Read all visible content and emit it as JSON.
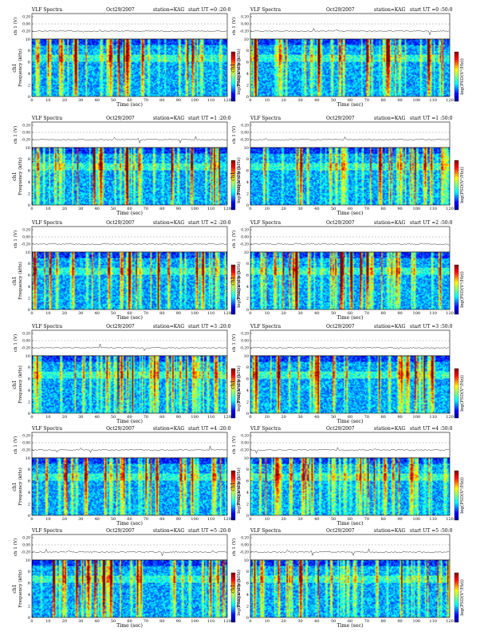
{
  "page": {
    "title_prefix": "VLF Spectra",
    "date": "Oct29/2007",
    "station": "station=KAG"
  },
  "colors": {
    "background": "#ffffff",
    "frame": "#000000"
  },
  "chart_data": [
    {
      "type": "heatmap",
      "panel": "0:20",
      "title": "VLF Spectra",
      "date": "Oct29/2007",
      "station": "station=KAG",
      "start_label": "start  UT =0 :20:0",
      "xlabel": "Time (sec)",
      "ylabel_top": "ch 1 (V)",
      "ylabel_main": "ch1",
      "ylabel_freq": "Frequency  (kHz)",
      "colorbar_label": "log(PSD(V²/Hz))",
      "xlim": [
        0,
        120
      ],
      "ylim": [
        0,
        10
      ],
      "xticks": [
        0,
        10,
        20,
        30,
        40,
        50,
        60,
        70,
        80,
        90,
        100,
        110,
        120
      ],
      "yticks": [
        0,
        2,
        4,
        6,
        8,
        10
      ],
      "ch_yticks": [
        "0.20",
        "0.00",
        "-0.20"
      ]
    },
    {
      "type": "heatmap",
      "panel": "0:50",
      "title": "VLF Spectra",
      "date": "Oct29/2007",
      "station": "station=KAG",
      "start_label": "start  UT =0 :50:0",
      "xlabel": "Time (sec)",
      "ylabel_top": "ch 1 (V)",
      "ylabel_main": "ch1",
      "ylabel_freq": "Frequency  (kHz)",
      "colorbar_label": "log(PSD(V²/Hz))",
      "xlim": [
        0,
        120
      ],
      "ylim": [
        0,
        10
      ],
      "xticks": [
        0,
        10,
        20,
        30,
        40,
        50,
        60,
        70,
        80,
        90,
        100,
        110,
        120
      ],
      "yticks": [
        0,
        2,
        4,
        6,
        8,
        10
      ],
      "ch_yticks": [
        "0.20",
        "0.00",
        "-0.20"
      ]
    },
    {
      "type": "heatmap",
      "panel": "1:20",
      "title": "VLF Spectra",
      "date": "Oct29/2007",
      "station": "station=KAG",
      "start_label": "start  UT =1 :20:0",
      "xlabel": "Time (sec)",
      "ylabel_top": "ch 1 (V)",
      "ylabel_main": "ch1",
      "ylabel_freq": "Frequency  (kHz)",
      "colorbar_label": "log(PSD(V²/Hz))",
      "xlim": [
        0,
        120
      ],
      "ylim": [
        0,
        10
      ],
      "xticks": [
        0,
        10,
        20,
        30,
        40,
        50,
        60,
        70,
        80,
        90,
        100,
        110,
        120
      ],
      "yticks": [
        0,
        2,
        4,
        6,
        8,
        10
      ],
      "ch_yticks": [
        "0.20",
        "0.00",
        "-0.20"
      ]
    },
    {
      "type": "heatmap",
      "panel": "1:50",
      "title": "VLF Spectra",
      "date": "Oct29/2007",
      "station": "station=KAG",
      "start_label": "start  UT =1 :50:0",
      "xlabel": "Time (sec)",
      "ylabel_top": "ch 1 (V)",
      "ylabel_main": "ch1",
      "ylabel_freq": "Frequency  (kHz)",
      "colorbar_label": "log(PSD(V²/Hz))",
      "xlim": [
        0,
        120
      ],
      "ylim": [
        0,
        10
      ],
      "xticks": [
        0,
        10,
        20,
        30,
        40,
        50,
        60,
        70,
        80,
        90,
        100,
        110,
        120
      ],
      "yticks": [
        0,
        2,
        4,
        6,
        8,
        10
      ],
      "ch_yticks": [
        "0.20",
        "0.00",
        "-0.20"
      ]
    },
    {
      "type": "heatmap",
      "panel": "2:20",
      "title": "VLF Spectra",
      "date": "Oct29/2007",
      "station": "station=KAG",
      "start_label": "start  UT =2 :20:0",
      "xlabel": "Time (sec)",
      "ylabel_top": "ch 1 (V)",
      "ylabel_main": "ch1",
      "ylabel_freq": "Frequency  (kHz)",
      "colorbar_label": "log(PSD(V²/Hz))",
      "xlim": [
        0,
        120
      ],
      "ylim": [
        0,
        10
      ],
      "xticks": [
        0,
        10,
        20,
        30,
        40,
        50,
        60,
        70,
        80,
        90,
        100,
        110,
        120
      ],
      "yticks": [
        0,
        2,
        4,
        6,
        8,
        10
      ],
      "ch_yticks": [
        "0.20",
        "0.00",
        "-0.20"
      ]
    },
    {
      "type": "heatmap",
      "panel": "2:50",
      "title": "VLF Spectra",
      "date": "Oct29/2007",
      "station": "station=KAG",
      "start_label": "start  UT =2 :50:0",
      "xlabel": "Time (sec)",
      "ylabel_top": "ch 1 (V)",
      "ylabel_main": "ch1",
      "ylabel_freq": "Frequency  (kHz)",
      "colorbar_label": "log(PSD(V²/Hz))",
      "xlim": [
        0,
        120
      ],
      "ylim": [
        0,
        10
      ],
      "xticks": [
        0,
        10,
        20,
        30,
        40,
        50,
        60,
        70,
        80,
        90,
        100,
        110,
        120
      ],
      "yticks": [
        0,
        2,
        4,
        6,
        8,
        10
      ],
      "ch_yticks": [
        "0.20",
        "0.00",
        "-0.20"
      ]
    },
    {
      "type": "heatmap",
      "panel": "3:20",
      "title": "VLF Spectra",
      "date": "Oct29/2007",
      "station": "station=KAG",
      "start_label": "start  UT =3 :20:0",
      "xlabel": "Time (sec)",
      "ylabel_top": "ch 1 (V)",
      "ylabel_main": "ch1",
      "ylabel_freq": "Frequency  (kHz)",
      "colorbar_label": "log(PSD(V²/Hz))",
      "xlim": [
        0,
        120
      ],
      "ylim": [
        0,
        10
      ],
      "xticks": [
        0,
        10,
        20,
        30,
        40,
        50,
        60,
        70,
        80,
        90,
        100,
        110,
        120
      ],
      "yticks": [
        0,
        2,
        4,
        6,
        8,
        10
      ],
      "ch_yticks": [
        "0.20",
        "0.00",
        "-0.20"
      ]
    },
    {
      "type": "heatmap",
      "panel": "3:50",
      "title": "VLF Spectra",
      "date": "Oct29/2007",
      "station": "station=KAG",
      "start_label": "start  UT =3 :50:0",
      "xlabel": "Time (sec)",
      "ylabel_top": "ch 1 (V)",
      "ylabel_main": "ch1",
      "ylabel_freq": "Frequency  (kHz)",
      "colorbar_label": "log(PSD(V²/Hz))",
      "xlim": [
        0,
        120
      ],
      "ylim": [
        0,
        10
      ],
      "xticks": [
        0,
        10,
        20,
        30,
        40,
        50,
        60,
        70,
        80,
        90,
        100,
        110,
        120
      ],
      "yticks": [
        0,
        2,
        4,
        6,
        8,
        10
      ],
      "ch_yticks": [
        "0.20",
        "0.00",
        "-0.20"
      ]
    },
    {
      "type": "heatmap",
      "panel": "4:20",
      "title": "VLF Spectra",
      "date": "Oct29/2007",
      "station": "station=KAG",
      "start_label": "start  UT =4 :20:0",
      "xlabel": "Time (sec)",
      "ylabel_top": "ch 1 (V)",
      "ylabel_main": "ch1",
      "ylabel_freq": "Frequency  (kHz)",
      "colorbar_label": "log(PSD(V²/Hz))",
      "xlim": [
        0,
        120
      ],
      "ylim": [
        0,
        10
      ],
      "xticks": [
        0,
        10,
        20,
        30,
        40,
        50,
        60,
        70,
        80,
        90,
        100,
        110,
        120
      ],
      "yticks": [
        0,
        2,
        4,
        6,
        8,
        10
      ],
      "ch_yticks": [
        "0.20",
        "0.00",
        "-0.20"
      ]
    },
    {
      "type": "heatmap",
      "panel": "4:50",
      "title": "VLF Spectra",
      "date": "Oct29/2007",
      "station": "station=KAG",
      "start_label": "start  UT =4 :50:0",
      "xlabel": "Time (sec)",
      "ylabel_top": "ch 1 (V)",
      "ylabel_main": "ch1",
      "ylabel_freq": "Frequency  (kHz)",
      "colorbar_label": "log(PSD(V²/Hz))",
      "xlim": [
        0,
        120
      ],
      "ylim": [
        0,
        10
      ],
      "xticks": [
        0,
        10,
        20,
        30,
        40,
        50,
        60,
        70,
        80,
        90,
        100,
        110,
        120
      ],
      "yticks": [
        0,
        2,
        4,
        6,
        8,
        10
      ],
      "ch_yticks": [
        "0.20",
        "0.00",
        "-0.20"
      ]
    },
    {
      "type": "heatmap",
      "panel": "5:20",
      "title": "VLF Spectra",
      "date": "Oct29/2007",
      "station": "station=KAG",
      "start_label": "start  UT =5 :20:0",
      "xlabel": "Time (sec)",
      "ylabel_top": "ch 1 (V)",
      "ylabel_main": "ch1",
      "ylabel_freq": "Frequency  (kHz)",
      "colorbar_label": "log(PSD(V²/Hz))",
      "xlim": [
        0,
        120
      ],
      "ylim": [
        0,
        10
      ],
      "xticks": [
        0,
        10,
        20,
        30,
        40,
        50,
        60,
        70,
        80,
        90,
        100,
        110,
        120
      ],
      "yticks": [
        0,
        2,
        4,
        6,
        8,
        10
      ],
      "ch_yticks": [
        "0.20",
        "0.00",
        "-0.20"
      ]
    },
    {
      "type": "heatmap",
      "panel": "5:50",
      "title": "VLF Spectra",
      "date": "Oct29/2007",
      "station": "station=KAG",
      "start_label": "start  UT =5 :50:0",
      "xlabel": "Time (sec)",
      "ylabel_top": "ch 1 (V)",
      "ylabel_main": "ch1",
      "ylabel_freq": "Frequency  (kHz)",
      "colorbar_label": "log(PSD(V²/Hz))",
      "xlim": [
        0,
        120
      ],
      "ylim": [
        0,
        10
      ],
      "xticks": [
        0,
        10,
        20,
        30,
        40,
        50,
        60,
        70,
        80,
        90,
        100,
        110,
        120
      ],
      "yticks": [
        0,
        2,
        4,
        6,
        8,
        10
      ],
      "ch_yticks": [
        "0.20",
        "0.00",
        "-0.20"
      ]
    }
  ]
}
